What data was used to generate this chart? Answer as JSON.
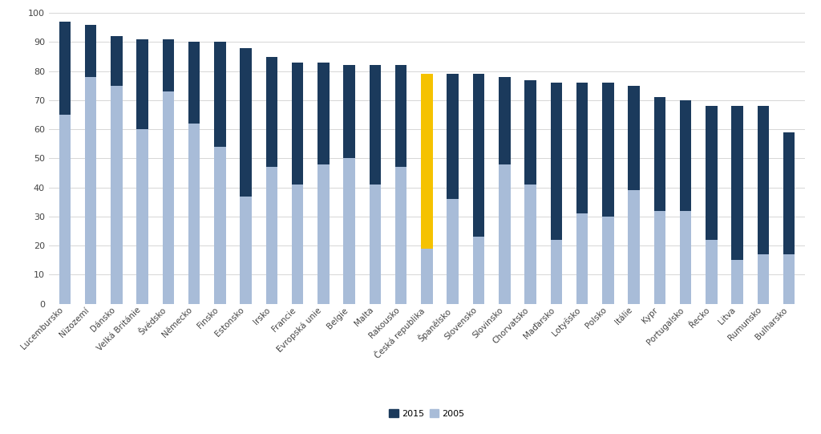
{
  "categories": [
    "Lucembursko",
    "Nizozemí",
    "Dánsko",
    "Velká Británie",
    "Švédsko",
    "Německo",
    "Finsko",
    "Estonsko",
    "Irsko",
    "Francie",
    "Evropská unie",
    "Belgie",
    "Malta",
    "Rakousko",
    "Česká republika",
    "Španělsko",
    "Slovensko",
    "Slovinsko",
    "Chorvatsko",
    "Maďarsko",
    "Lotyšsko",
    "Polsko",
    "Itálie",
    "Kypr",
    "Portugalsko",
    "Řecko",
    "Litva",
    "Rumunsko",
    "Bulharsko"
  ],
  "val_2015": [
    97,
    96,
    92,
    91,
    91,
    90,
    90,
    88,
    85,
    83,
    83,
    82,
    82,
    82,
    79,
    79,
    79,
    78,
    77,
    76,
    76,
    76,
    75,
    71,
    70,
    68,
    68,
    68,
    59
  ],
  "val_2005": [
    65,
    78,
    75,
    60,
    73,
    62,
    54,
    37,
    47,
    41,
    48,
    50,
    41,
    47,
    19,
    36,
    23,
    48,
    41,
    22,
    31,
    30,
    39,
    32,
    32,
    22,
    15,
    17,
    17
  ],
  "highlight_index": 14,
  "color_2015_normal": "#1b3a5c",
  "color_2015_highlight": "#f5c200",
  "color_2005": "#a8bcd8",
  "background_color": "#ffffff",
  "plot_bg_color": "#f9f9f9",
  "grid_color": "#d0d0d0",
  "legend_2015": "2015",
  "legend_2005": "2005",
  "ylim": [
    0,
    100
  ],
  "yticks": [
    0,
    10,
    20,
    30,
    40,
    50,
    60,
    70,
    80,
    90,
    100
  ],
  "bar_width": 0.45,
  "tick_fontsize": 8,
  "label_fontsize": 7.5,
  "legend_fontsize": 8
}
